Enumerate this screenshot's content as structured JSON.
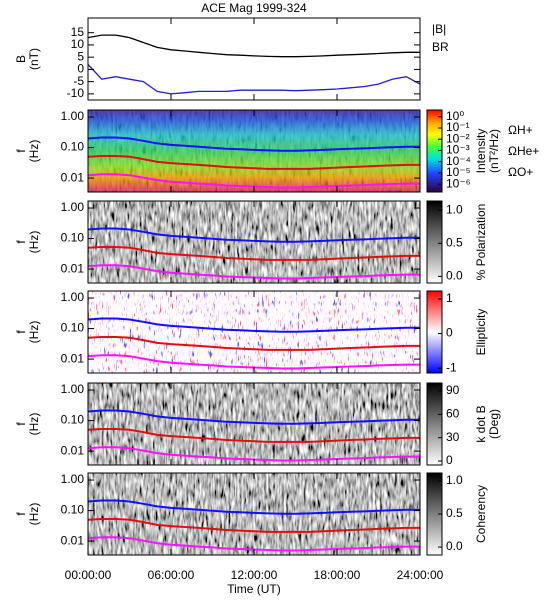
{
  "chart_data": [
    {
      "type": "line",
      "title": "ACE Mag 1999-324",
      "ylabel": [
        "B",
        "(nT)"
      ],
      "x": [
        0,
        1,
        2,
        3,
        4,
        5,
        6,
        7,
        8,
        9,
        10,
        11,
        12,
        13,
        14,
        15,
        16,
        17,
        18,
        19,
        20,
        21,
        22,
        23,
        24
      ],
      "ylim": [
        -12.5,
        21
      ],
      "yticks": [
        -10,
        -5,
        0,
        5,
        10,
        15
      ],
      "series": [
        {
          "name": "|B|",
          "color": "#000000",
          "values": [
            13,
            14,
            14,
            13,
            11,
            9,
            8,
            7.5,
            7,
            6.5,
            6,
            5.8,
            5.5,
            5.3,
            5.2,
            5.2,
            5.3,
            5.5,
            5.8,
            6,
            6.2,
            6.5,
            6.8,
            7,
            7
          ]
        },
        {
          "name": "BR",
          "color": "#1f1fd0",
          "values": [
            2,
            -4,
            -3,
            -4,
            -5,
            -9,
            -10,
            -9.5,
            -9,
            -9,
            -9,
            -8.5,
            -8.5,
            -8.5,
            -8.5,
            -8.7,
            -8.5,
            -8.3,
            -8,
            -7.5,
            -7,
            -6,
            -4,
            -3,
            -6
          ]
        }
      ]
    },
    {
      "type": "spectrogram",
      "ylabel": [
        "f",
        "(Hz)"
      ],
      "log_scale": true,
      "ylim": [
        0.0035,
        1.7
      ],
      "yticks": [
        {
          "value": 0.01,
          "label": "0.01"
        },
        {
          "value": 0.1,
          "label": "0.10"
        },
        {
          "value": 1,
          "label": "1.00"
        }
      ],
      "x": [
        0,
        1,
        2,
        3,
        4,
        5,
        6,
        7,
        8,
        9,
        10,
        11,
        12,
        13,
        14,
        15,
        16,
        17,
        18,
        19,
        20,
        21,
        22,
        23,
        24
      ],
      "series": [
        {
          "name": "ΩH+",
          "color": "#1010ff",
          "values": [
            0.198,
            0.213,
            0.213,
            0.198,
            0.167,
            0.137,
            0.122,
            0.114,
            0.106,
            0.099,
            0.091,
            0.088,
            0.084,
            0.081,
            0.079,
            0.079,
            0.081,
            0.084,
            0.088,
            0.091,
            0.094,
            0.099,
            0.103,
            0.106,
            0.106
          ]
        },
        {
          "name": "ΩHe+",
          "color": "#e01010",
          "values": [
            0.05,
            0.053,
            0.053,
            0.05,
            0.042,
            0.034,
            0.031,
            0.029,
            0.027,
            0.025,
            0.023,
            0.022,
            0.021,
            0.02,
            0.02,
            0.02,
            0.02,
            0.021,
            0.022,
            0.023,
            0.024,
            0.025,
            0.026,
            0.027,
            0.027
          ]
        },
        {
          "name": "ΩO+",
          "color": "#ff10ff",
          "values": [
            0.0124,
            0.0133,
            0.0133,
            0.0124,
            0.0104,
            0.0086,
            0.0076,
            0.0071,
            0.0066,
            0.0062,
            0.0057,
            0.0055,
            0.0053,
            0.0051,
            0.0049,
            0.0049,
            0.0051,
            0.0053,
            0.0055,
            0.0057,
            0.0059,
            0.0062,
            0.0064,
            0.0066,
            0.0066
          ]
        }
      ],
      "colorbar": {
        "label": [
          "Intensity",
          "(nT²/Hz)"
        ],
        "log_scale": true,
        "lim": [
          2e-07,
          4
        ],
        "ticks": [
          {
            "value": 1,
            "label": "10⁰"
          },
          {
            "value": 0.1,
            "label": "10⁻¹"
          },
          {
            "value": 0.01,
            "label": "10⁻²"
          },
          {
            "value": 0.001,
            "label": "10⁻³"
          },
          {
            "value": 0.0001,
            "label": "10⁻⁴"
          },
          {
            "value": 1e-05,
            "label": "10⁻⁵"
          },
          {
            "value": 1e-06,
            "label": "10⁻⁶"
          }
        ]
      }
    },
    {
      "type": "spectrogram",
      "ylabel": [
        "f",
        "(Hz)"
      ],
      "log_scale": true,
      "ylim": [
        0.0035,
        1.7
      ],
      "yticks": [
        {
          "value": 0.01,
          "label": "0.01"
        },
        {
          "value": 0.1,
          "label": "0.10"
        },
        {
          "value": 1,
          "label": "1.00"
        }
      ],
      "colorbar": {
        "label": [
          "% Polarization"
        ],
        "log_scale": false,
        "lim": [
          -0.1,
          1.14
        ],
        "ticks": [
          {
            "value": 0,
            "label": "0.0"
          },
          {
            "value": 0.5,
            "label": "0.5"
          },
          {
            "value": 1,
            "label": "1.0"
          }
        ]
      }
    },
    {
      "type": "spectrogram",
      "ylabel": [
        "f",
        "(Hz)"
      ],
      "log_scale": true,
      "ylim": [
        0.0035,
        1.7
      ],
      "yticks": [
        {
          "value": 0.01,
          "label": "0.01"
        },
        {
          "value": 0.1,
          "label": "0.10"
        },
        {
          "value": 1,
          "label": "1.00"
        }
      ],
      "colorbar": {
        "label": [
          "Ellipticity"
        ],
        "log_scale": false,
        "lim": [
          -1.14,
          1.23
        ],
        "ticks": [
          -1,
          0,
          1
        ]
      }
    },
    {
      "type": "spectrogram",
      "ylabel": [
        "f",
        "(Hz)"
      ],
      "log_scale": true,
      "ylim": [
        0.0035,
        1.7
      ],
      "yticks": [
        {
          "value": 0.01,
          "label": "0.01"
        },
        {
          "value": 0.1,
          "label": "0.10"
        },
        {
          "value": 1,
          "label": "1.00"
        }
      ],
      "colorbar": {
        "label": [
          "k dot B",
          "(Deg)"
        ],
        "log_scale": false,
        "lim": [
          -5.1,
          100.3
        ],
        "ticks": [
          0,
          30,
          60,
          90
        ]
      }
    },
    {
      "type": "spectrogram",
      "ylabel": [
        "f",
        "(Hz)"
      ],
      "log_scale": true,
      "ylim": [
        0.0035,
        1.7
      ],
      "yticks": [
        {
          "value": 0.01,
          "label": "0.01"
        },
        {
          "value": 0.1,
          "label": "0.10"
        },
        {
          "value": 1,
          "label": "1.00"
        }
      ],
      "colorbar": {
        "label": [
          "Coherency"
        ],
        "log_scale": false,
        "lim": [
          -0.12,
          1.12
        ],
        "ticks": [
          {
            "value": 0,
            "label": "0.0"
          },
          {
            "value": 0.5,
            "label": "0.5"
          },
          {
            "value": 1,
            "label": "1.0"
          }
        ]
      },
      "xlabel": "Time (UT)",
      "xlim": [
        0,
        24
      ],
      "xticks": [
        {
          "value": 0,
          "label": "00:00:00"
        },
        {
          "value": 6,
          "label": "06:00:00"
        },
        {
          "value": 12,
          "label": "12:00:00"
        },
        {
          "value": 18,
          "label": "18:00:00"
        },
        {
          "value": 24,
          "label": "24:00:00"
        }
      ]
    }
  ]
}
